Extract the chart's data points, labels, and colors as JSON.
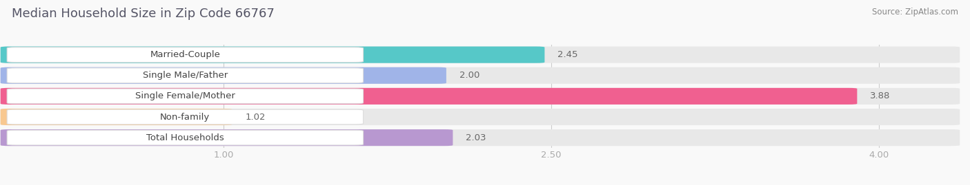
{
  "title": "Median Household Size in Zip Code 66767",
  "source": "Source: ZipAtlas.com",
  "categories": [
    "Married-Couple",
    "Single Male/Father",
    "Single Female/Mother",
    "Non-family",
    "Total Households"
  ],
  "values": [
    2.45,
    2.0,
    3.88,
    1.02,
    2.03
  ],
  "bar_colors": [
    "#56c8c8",
    "#a0b4e8",
    "#f06090",
    "#f8c890",
    "#b898d0"
  ],
  "row_bg_color": "#e8e8e8",
  "xlim_left": 0.0,
  "xlim_right": 4.35,
  "xmin": 0.0,
  "xticks": [
    1.0,
    2.5,
    4.0
  ],
  "background_color": "#f9f9f9",
  "title_fontsize": 13,
  "label_fontsize": 9.5,
  "value_fontsize": 9.5,
  "source_fontsize": 8.5,
  "title_color": "#555566",
  "source_color": "#888888",
  "label_text_color": "#444444",
  "value_text_color": "#666666",
  "tick_color": "#aaaaaa"
}
